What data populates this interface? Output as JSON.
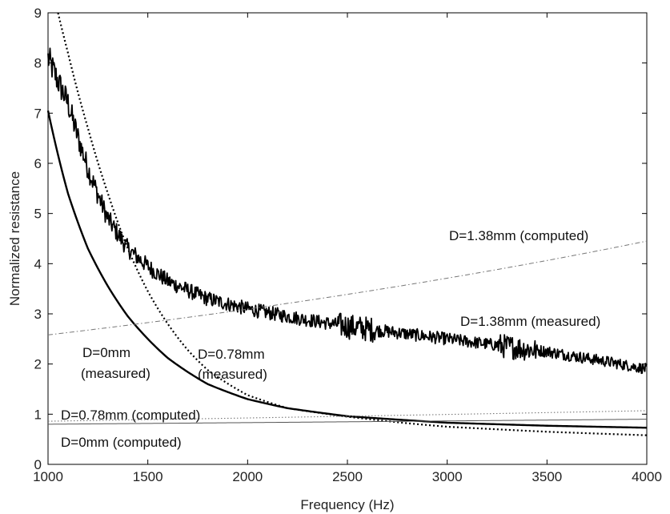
{
  "chart_data": {
    "type": "line",
    "title": "",
    "xlabel": "Frequency (Hz)",
    "ylabel": "Normalized resistance",
    "xlim": [
      1000,
      4000
    ],
    "ylim": [
      0,
      9
    ],
    "xticks": [
      "1000",
      "1500",
      "2000",
      "2500",
      "3000",
      "3500",
      "4000"
    ],
    "yticks": [
      "0",
      "1",
      "2",
      "3",
      "4",
      "5",
      "6",
      "7",
      "8",
      "9"
    ],
    "grid": false,
    "legend": "none",
    "series": [
      {
        "name": "D=0mm (measured)",
        "style": "solid-thick",
        "color": "#000000",
        "x": [
          1000,
          1100,
          1200,
          1300,
          1400,
          1500,
          1600,
          1800,
          2000,
          2200,
          2500,
          2800,
          3000,
          3500,
          4000
        ],
        "y": [
          7.05,
          5.4,
          4.3,
          3.55,
          2.95,
          2.5,
          2.12,
          1.6,
          1.3,
          1.12,
          0.96,
          0.88,
          0.83,
          0.77,
          0.73
        ]
      },
      {
        "name": "D=0.78mm (measured)",
        "style": "dotted",
        "color": "#000000",
        "x": [
          1050,
          1100,
          1200,
          1300,
          1400,
          1500,
          1600,
          1700,
          1800,
          2000,
          2200,
          2500,
          2800,
          3000,
          3500,
          4000
        ],
        "y": [
          9.0,
          8.2,
          6.7,
          5.4,
          4.3,
          3.45,
          2.8,
          2.28,
          1.88,
          1.38,
          1.12,
          0.95,
          0.82,
          0.75,
          0.65,
          0.58
        ]
      },
      {
        "name": "D=1.38mm (measured)",
        "style": "noisy-dashed",
        "color": "#000000",
        "x": [
          1000,
          1100,
          1200,
          1300,
          1400,
          1500,
          1600,
          1800,
          2000,
          2200,
          2500,
          2800,
          3000,
          3200,
          3500,
          3800,
          4000
        ],
        "y": [
          8.1,
          7.2,
          5.9,
          4.9,
          4.3,
          3.95,
          3.65,
          3.3,
          3.1,
          2.95,
          2.75,
          2.6,
          2.5,
          2.4,
          2.25,
          2.05,
          1.9
        ]
      },
      {
        "name": "D=0mm (computed)",
        "style": "thin-solid",
        "color": "#555555",
        "x": [
          1000,
          4000
        ],
        "y": [
          0.8,
          0.9
        ]
      },
      {
        "name": "D=0.78mm (computed)",
        "style": "thin-dotted",
        "color": "#777777",
        "x": [
          1000,
          4000
        ],
        "y": [
          0.86,
          1.07
        ]
      },
      {
        "name": "D=1.38mm (computed)",
        "style": "dash-dot",
        "color": "#777777",
        "x": [
          1000,
          4000
        ],
        "y": [
          2.58,
          4.45
        ]
      }
    ],
    "annotations": [
      {
        "id": "d0-meas-1",
        "text": "D=0mm"
      },
      {
        "id": "d0-meas-2",
        "text": "(measured)"
      },
      {
        "id": "d078-meas-1",
        "text": "D=0.78mm"
      },
      {
        "id": "d078-meas-2",
        "text": "(measured)"
      },
      {
        "id": "d138-meas",
        "text": "D=1.38mm (measured)"
      },
      {
        "id": "d138-comp",
        "text": "D=1.38mm (computed)"
      },
      {
        "id": "d078-comp",
        "text": "D=0.78mm (computed)"
      },
      {
        "id": "d0-comp",
        "text": "D=0mm (computed)"
      }
    ]
  }
}
